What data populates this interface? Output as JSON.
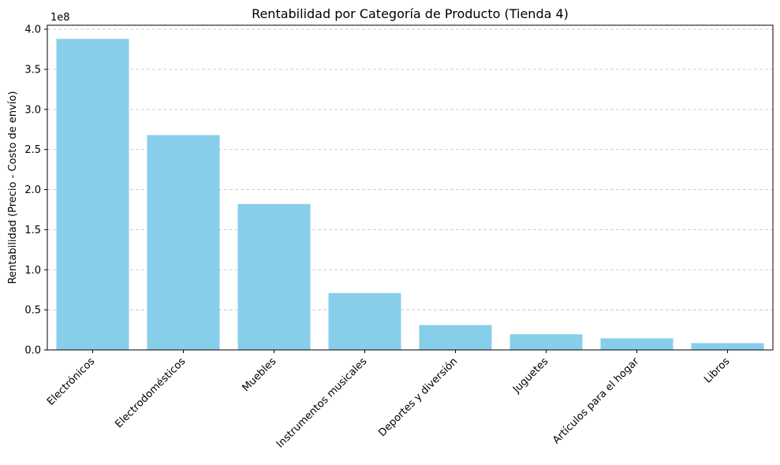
{
  "chart_data": {
    "type": "bar",
    "title": "Rentabilidad por Categoría de Producto (Tienda 4)",
    "xlabel": "",
    "ylabel": "Rentabilidad (Precio - Costo de envío)",
    "y_offset_label": "1e8",
    "categories": [
      "Electrónicos",
      "Electrodomésticos",
      "Muebles",
      "Instrumentos musicales",
      "Deportes y diversión",
      "Juguetes",
      "Artículos para el hogar",
      "Libros"
    ],
    "values": [
      388000000,
      268000000,
      182000000,
      71000000,
      31000000,
      19500000,
      14500000,
      8500000
    ],
    "ylim": [
      0,
      405000000
    ],
    "yticks": [
      0,
      50000000,
      100000000,
      150000000,
      200000000,
      250000000,
      300000000,
      350000000,
      400000000
    ],
    "ytick_labels": [
      "0.0",
      "0.5",
      "1.0",
      "1.5",
      "2.0",
      "2.5",
      "3.0",
      "3.5",
      "4.0"
    ],
    "grid": "y-dashed",
    "bar_color": "#87ceeb"
  }
}
